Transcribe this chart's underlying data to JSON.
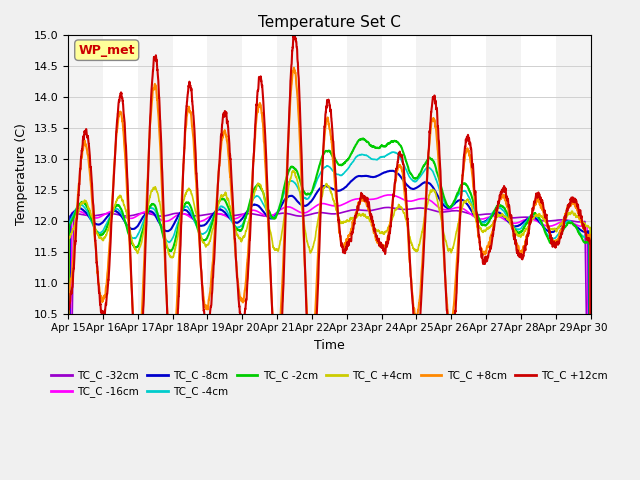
{
  "title": "Temperature Set C",
  "xlabel": "Time",
  "ylabel": "Temperature (C)",
  "ylim": [
    10.5,
    15.0
  ],
  "x_tick_labels": [
    "Apr 15",
    "Apr 16",
    "Apr 17",
    "Apr 18",
    "Apr 19",
    "Apr 20",
    "Apr 21",
    "Apr 22",
    "Apr 23",
    "Apr 24",
    "Apr 25",
    "Apr 26",
    "Apr 27",
    "Apr 28",
    "Apr 29",
    "Apr 30"
  ],
  "annotation_text": "WP_met",
  "annotation_color": "#cc0000",
  "annotation_bg": "#ffff99",
  "series": [
    {
      "label": "TC_C -32cm",
      "color": "#9900cc",
      "lw": 1.2
    },
    {
      "label": "TC_C -16cm",
      "color": "#ff00ff",
      "lw": 1.2
    },
    {
      "label": "TC_C -8cm",
      "color": "#0000cc",
      "lw": 1.5
    },
    {
      "label": "TC_C -4cm",
      "color": "#00cccc",
      "lw": 1.2
    },
    {
      "label": "TC_C -2cm",
      "color": "#00cc00",
      "lw": 1.5
    },
    {
      "label": "TC_C +4cm",
      "color": "#cccc00",
      "lw": 1.2
    },
    {
      "label": "TC_C +8cm",
      "color": "#ff8800",
      "lw": 1.5
    },
    {
      "label": "TC_C +12cm",
      "color": "#cc0000",
      "lw": 1.5
    }
  ],
  "bg_color": "#f0f0f0",
  "plot_bg": "#ffffff",
  "legend_ncol": 6
}
